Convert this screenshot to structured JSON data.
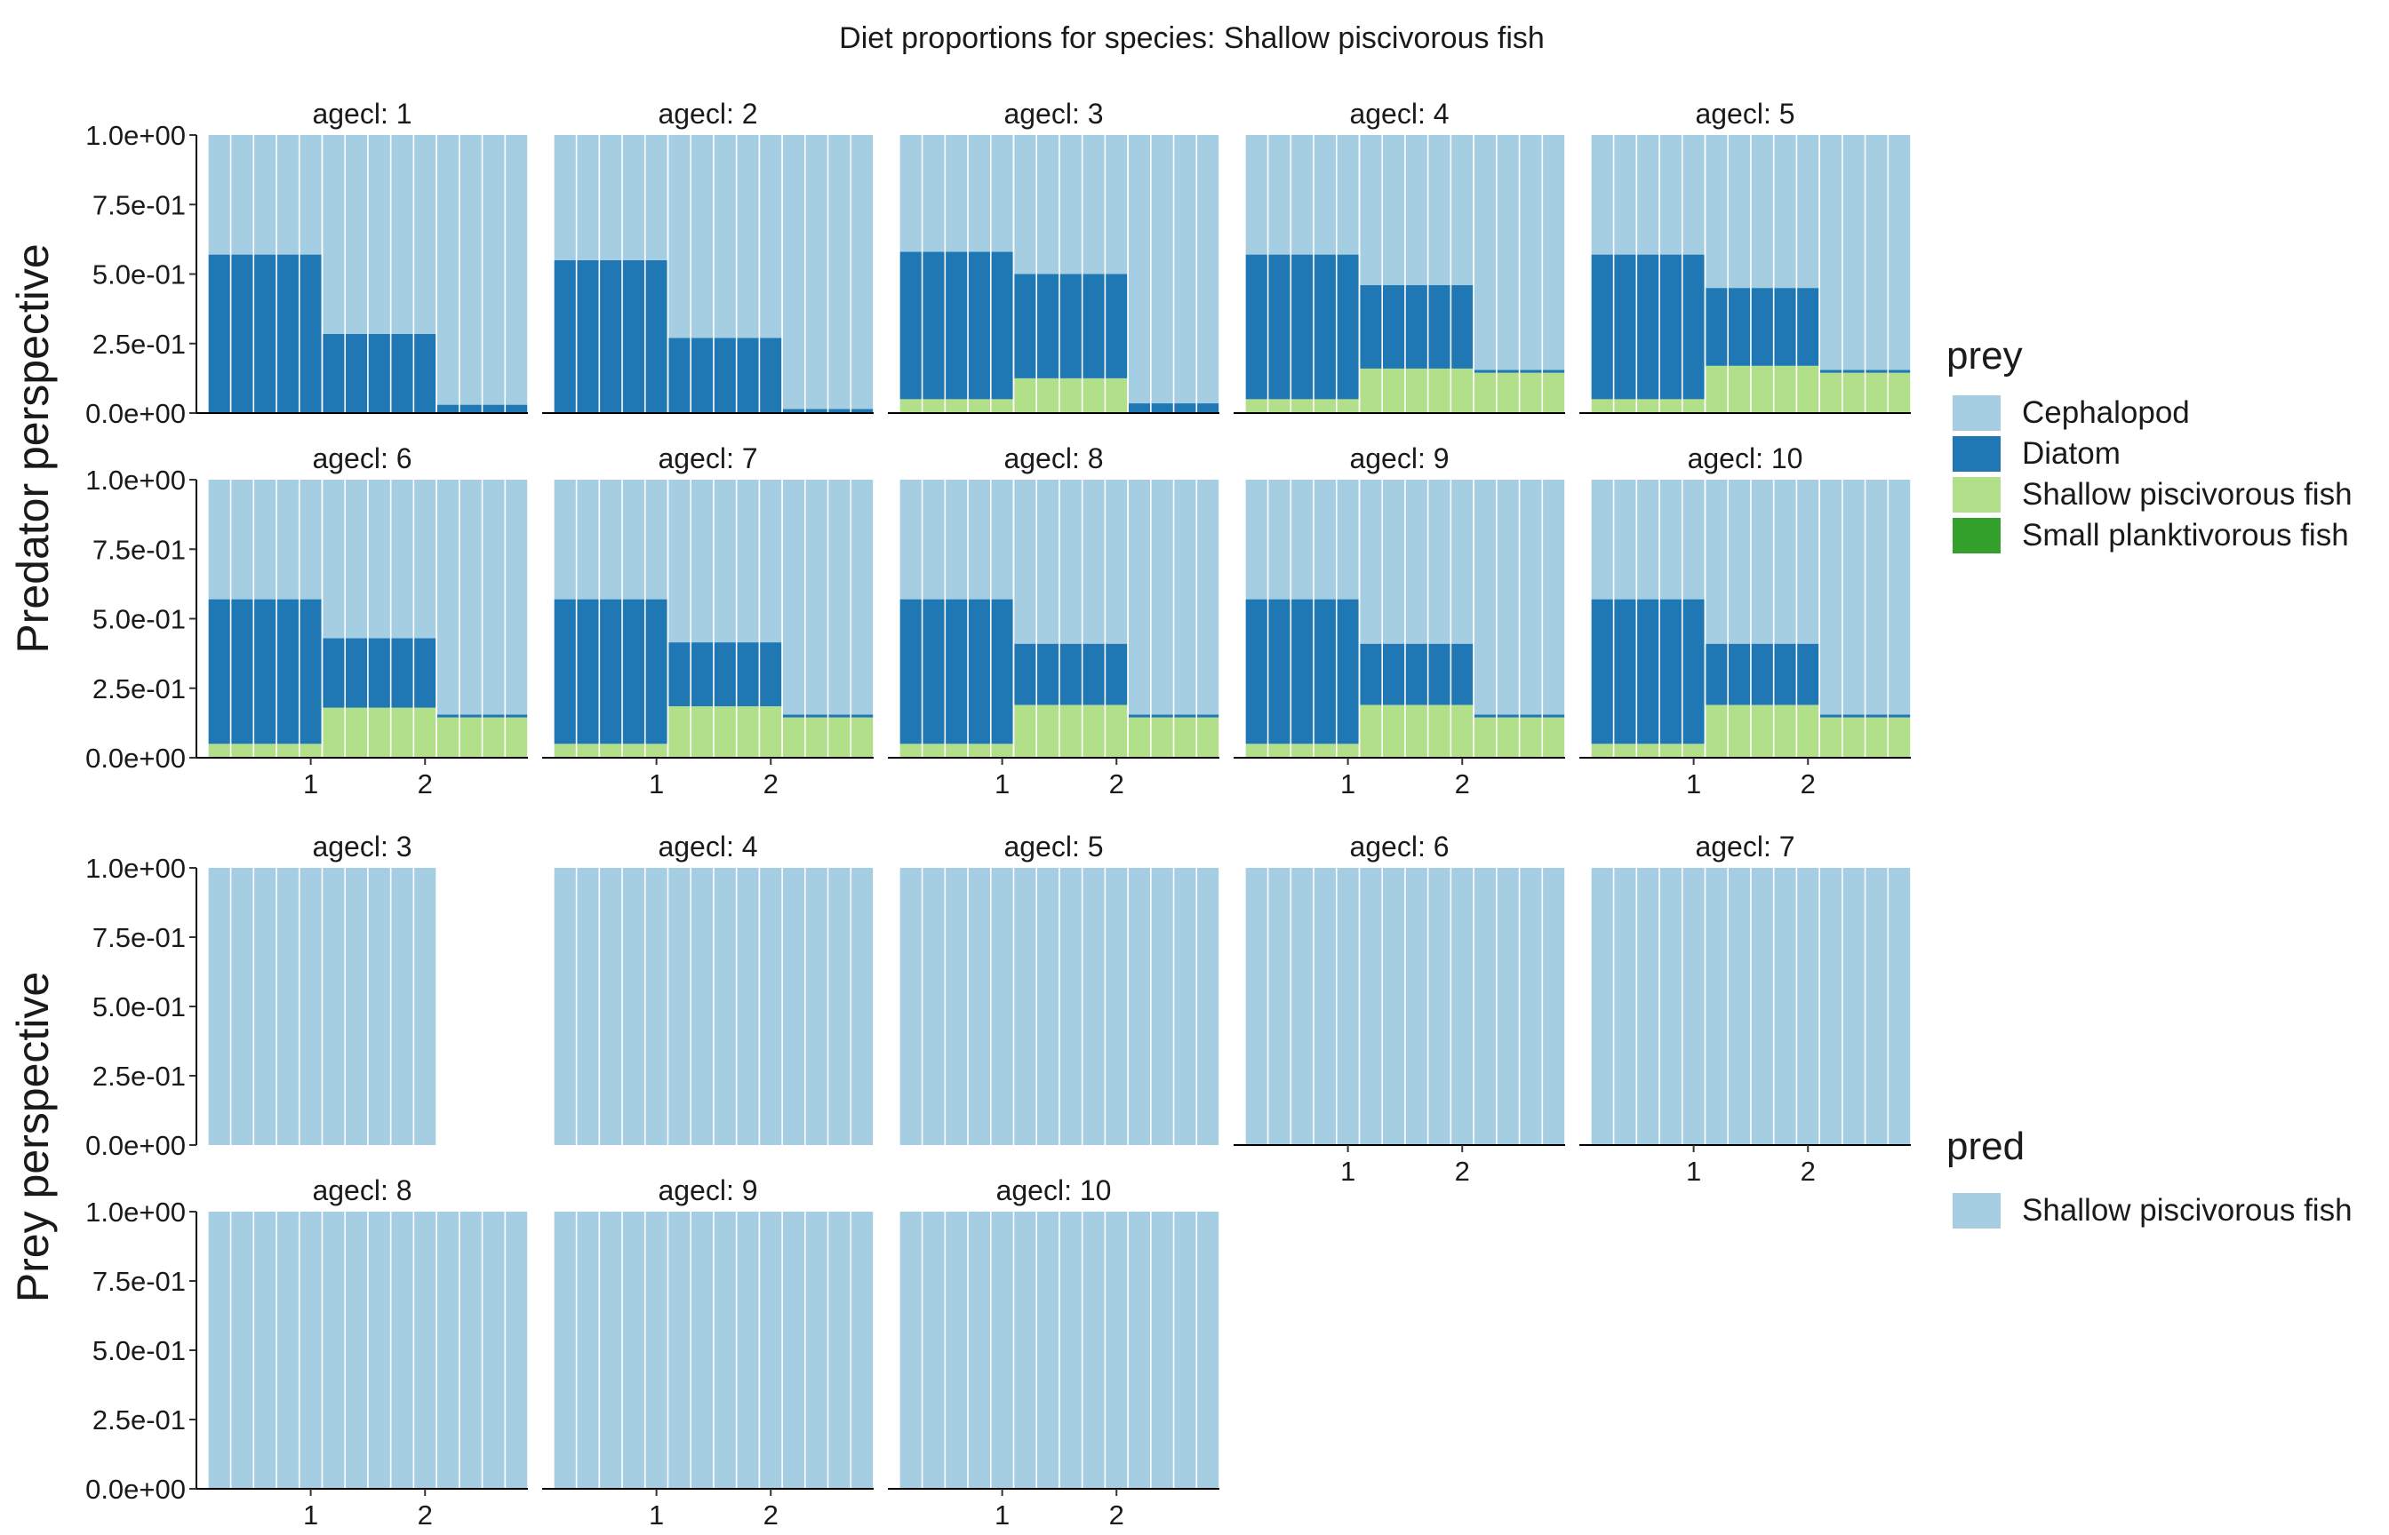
{
  "title": "Diet proportions for species: Shallow piscivorous fish",
  "colors": {
    "Cephalopod": "#a6cee3",
    "Diatom": "#1f78b4",
    "Shallow piscivorous fish": "#b2df8a",
    "Small planktivorous fish": "#33a02c"
  },
  "chart_data": [
    {
      "type": "bar",
      "stacked": true,
      "facet_label": "Predator perspective",
      "ylabel": "Predator perspective",
      "xlabel": "",
      "ylim": [
        0,
        1
      ],
      "y_tick_labels": [
        "0.0e+00",
        "2.5e-01",
        "5.0e-01",
        "7.5e-01",
        "1.0e+00"
      ],
      "x_tick_labels": [
        "1",
        "2"
      ],
      "x_tick_positions": [
        1,
        2
      ],
      "grid": false,
      "bars_per_panel": 14,
      "bar_group_pattern": "3 intervals of 5, 5, 4 bars spanning x 0.1 to 2.9",
      "legend": {
        "title": "prey",
        "position": "right",
        "entries": [
          "Cephalopod",
          "Diatom",
          "Shallow piscivorous fish",
          "Small planktivorous fish"
        ]
      },
      "panels": [
        {
          "label": "agecl: 1",
          "groups": [
            {
              "Shallow piscivorous fish": 0.0,
              "Diatom": 0.57,
              "Cephalopod": 0.43
            },
            {
              "Shallow piscivorous fish": 0.0,
              "Diatom": 0.285,
              "Cephalopod": 0.715
            },
            {
              "Shallow piscivorous fish": 0.0,
              "Diatom": 0.03,
              "Cephalopod": 0.97
            }
          ]
        },
        {
          "label": "agecl: 2",
          "groups": [
            {
              "Shallow piscivorous fish": 0.0,
              "Diatom": 0.55,
              "Cephalopod": 0.45
            },
            {
              "Shallow piscivorous fish": 0.0,
              "Diatom": 0.27,
              "Cephalopod": 0.73
            },
            {
              "Shallow piscivorous fish": 0.0,
              "Diatom": 0.015,
              "Cephalopod": 0.985
            }
          ]
        },
        {
          "label": "agecl: 3",
          "groups": [
            {
              "Shallow piscivorous fish": 0.05,
              "Diatom": 0.53,
              "Cephalopod": 0.42
            },
            {
              "Shallow piscivorous fish": 0.125,
              "Diatom": 0.375,
              "Cephalopod": 0.5
            },
            {
              "Shallow piscivorous fish": 0.0,
              "Diatom": 0.035,
              "Cephalopod": 0.965
            }
          ]
        },
        {
          "label": "agecl: 4",
          "groups": [
            {
              "Shallow piscivorous fish": 0.05,
              "Diatom": 0.52,
              "Cephalopod": 0.43
            },
            {
              "Shallow piscivorous fish": 0.16,
              "Diatom": 0.3,
              "Cephalopod": 0.54
            },
            {
              "Shallow piscivorous fish": 0.145,
              "Diatom": 0.01,
              "Cephalopod": 0.845
            }
          ]
        },
        {
          "label": "agecl: 5",
          "groups": [
            {
              "Shallow piscivorous fish": 0.05,
              "Diatom": 0.52,
              "Cephalopod": 0.43
            },
            {
              "Shallow piscivorous fish": 0.17,
              "Diatom": 0.28,
              "Cephalopod": 0.55
            },
            {
              "Shallow piscivorous fish": 0.145,
              "Diatom": 0.01,
              "Cephalopod": 0.845
            }
          ]
        },
        {
          "label": "agecl: 6",
          "groups": [
            {
              "Shallow piscivorous fish": 0.05,
              "Diatom": 0.52,
              "Cephalopod": 0.43
            },
            {
              "Shallow piscivorous fish": 0.18,
              "Diatom": 0.25,
              "Cephalopod": 0.57
            },
            {
              "Shallow piscivorous fish": 0.145,
              "Diatom": 0.01,
              "Cephalopod": 0.845
            }
          ]
        },
        {
          "label": "agecl: 7",
          "groups": [
            {
              "Shallow piscivorous fish": 0.05,
              "Diatom": 0.52,
              "Cephalopod": 0.43
            },
            {
              "Shallow piscivorous fish": 0.185,
              "Diatom": 0.23,
              "Cephalopod": 0.585
            },
            {
              "Shallow piscivorous fish": 0.145,
              "Diatom": 0.01,
              "Cephalopod": 0.845
            }
          ]
        },
        {
          "label": "agecl: 8",
          "groups": [
            {
              "Shallow piscivorous fish": 0.05,
              "Diatom": 0.52,
              "Cephalopod": 0.43
            },
            {
              "Shallow piscivorous fish": 0.19,
              "Diatom": 0.22,
              "Cephalopod": 0.59
            },
            {
              "Shallow piscivorous fish": 0.145,
              "Diatom": 0.01,
              "Cephalopod": 0.845
            }
          ]
        },
        {
          "label": "agecl: 9",
          "groups": [
            {
              "Shallow piscivorous fish": 0.05,
              "Diatom": 0.52,
              "Cephalopod": 0.43
            },
            {
              "Shallow piscivorous fish": 0.19,
              "Diatom": 0.22,
              "Cephalopod": 0.59
            },
            {
              "Shallow piscivorous fish": 0.145,
              "Diatom": 0.01,
              "Cephalopod": 0.845
            }
          ]
        },
        {
          "label": "agecl: 10",
          "groups": [
            {
              "Shallow piscivorous fish": 0.05,
              "Diatom": 0.52,
              "Cephalopod": 0.43
            },
            {
              "Shallow piscivorous fish": 0.19,
              "Diatom": 0.22,
              "Cephalopod": 0.59
            },
            {
              "Shallow piscivorous fish": 0.145,
              "Diatom": 0.01,
              "Cephalopod": 0.845
            }
          ]
        }
      ]
    },
    {
      "type": "bar",
      "stacked": true,
      "facet_label": "Prey perspective",
      "ylabel": "Prey perspective",
      "xlabel": "",
      "ylim": [
        0,
        1
      ],
      "y_tick_labels": [
        "0.0e+00",
        "2.5e-01",
        "5.0e-01",
        "7.5e-01",
        "1.0e+00"
      ],
      "x_tick_labels": [
        "1",
        "2"
      ],
      "x_tick_positions": [
        1,
        2
      ],
      "grid": false,
      "legend": {
        "title": "pred",
        "position": "right",
        "entries": [
          "Shallow piscivorous fish"
        ]
      },
      "panels": [
        {
          "label": "agecl: 3",
          "value": 1.0,
          "bars": 10,
          "x_end": 2.1
        },
        {
          "label": "agecl: 4",
          "value": 1.0,
          "bars": 14,
          "x_end": 2.9
        },
        {
          "label": "agecl: 5",
          "value": 1.0,
          "bars": 14,
          "x_end": 2.9
        },
        {
          "label": "agecl: 6",
          "value": 1.0,
          "bars": 14,
          "x_end": 2.9
        },
        {
          "label": "agecl: 7",
          "value": 1.0,
          "bars": 14,
          "x_end": 2.9
        },
        {
          "label": "agecl: 8",
          "value": 1.0,
          "bars": 14,
          "x_end": 2.9
        },
        {
          "label": "agecl: 9",
          "value": 1.0,
          "bars": 14,
          "x_end": 2.9
        },
        {
          "label": "agecl: 10",
          "value": 1.0,
          "bars": 14,
          "x_end": 2.9
        }
      ]
    }
  ]
}
